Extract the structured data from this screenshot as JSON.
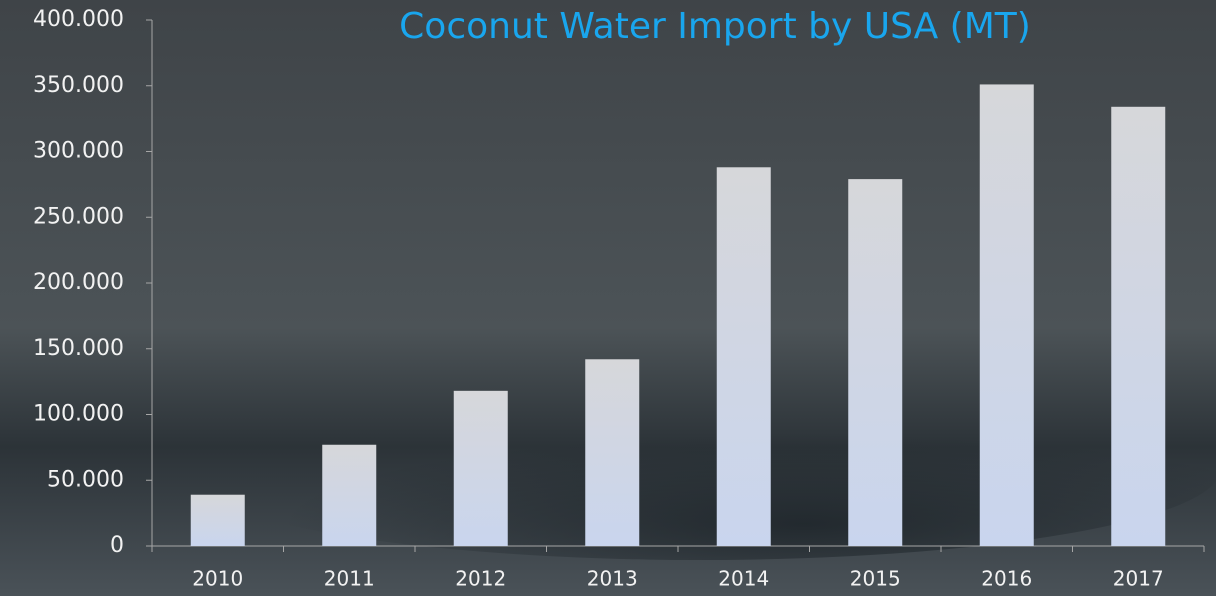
{
  "chart_data": {
    "type": "bar",
    "title": "Coconut Water Import by USA (MT)",
    "categories": [
      "2010",
      "2011",
      "2012",
      "2013",
      "2014",
      "2015",
      "2016",
      "2017"
    ],
    "values": [
      39000,
      77000,
      118000,
      142000,
      288000,
      279000,
      351000,
      334000
    ],
    "color": "#d9dde6",
    "ylim": [
      0,
      400000
    ],
    "yticks": [
      0,
      {
        "value": 50000,
        "label": "50.000"
      },
      {
        "value": 100000,
        "label": "100.000"
      },
      {
        "value": 150000,
        "label": "150.000"
      },
      {
        "value": 200000,
        "label": "200.000"
      },
      {
        "value": 250000,
        "label": "250.000"
      },
      {
        "value": 300000,
        "label": "300.000"
      },
      {
        "value": 350000,
        "label": "350.000"
      },
      {
        "value": 400000,
        "label": "400.000"
      }
    ],
    "grid": false
  }
}
